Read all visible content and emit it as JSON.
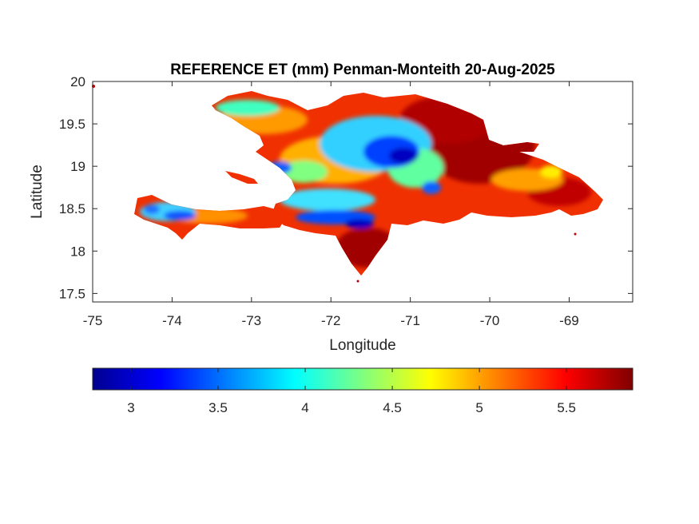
{
  "map": {
    "title": "REFERENCE ET (mm) Penman-Monteith 20-Aug-2025",
    "xlabel": "Longitude",
    "ylabel": "Latitude",
    "xlim": [
      -75,
      -68.2
    ],
    "ylim": [
      17.4,
      20
    ],
    "xticks": [
      "-75",
      "-74",
      "-73",
      "-72",
      "-71",
      "-70",
      "-69"
    ],
    "xtick_values": [
      -75,
      -74,
      -73,
      -72,
      -71,
      -70,
      -69
    ],
    "yticks": [
      "17.5",
      "18",
      "18.5",
      "19",
      "19.5",
      "20"
    ],
    "ytick_values": [
      17.5,
      18,
      18.5,
      19,
      19.5,
      20
    ],
    "colormap": "jet",
    "region": "Hispaniola"
  },
  "colorbar": {
    "range": [
      2.78,
      5.88
    ],
    "ticks": [
      "3",
      "3.5",
      "4",
      "4.5",
      "5",
      "5.5"
    ],
    "tick_values": [
      3,
      3.5,
      4,
      4.5,
      5,
      5.5
    ],
    "colors": [
      "#00008f",
      "#0000ff",
      "#00ffff",
      "#ffff00",
      "#ff0000",
      "#800000"
    ]
  }
}
